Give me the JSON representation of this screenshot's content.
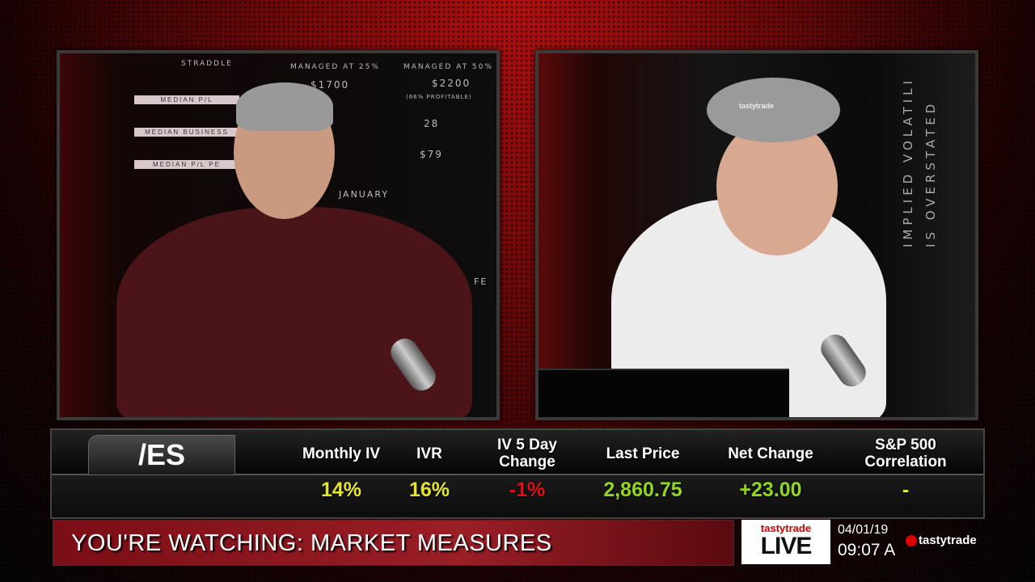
{
  "left_set": {
    "table_header": [
      "STRADDLE",
      "MANAGED AT 25%",
      "MANAGED AT 50%"
    ],
    "row_labels": [
      "MEDIAN P/L",
      "MEDIAN BUSINESS",
      "MEDIAN P/L PE"
    ],
    "values": [
      "$1700",
      "$2200",
      "(66% PROFITABLE)",
      "28",
      "$79"
    ],
    "month": "JANUARY",
    "month2": "FE"
  },
  "right_set": {
    "wall_text_1": "IMPLIED VOLATILI",
    "wall_text_2": "IS OVERSTATED",
    "hat_logo": "tastytrade"
  },
  "ticker": {
    "symbol": "/ES",
    "columns": [
      {
        "header": "Monthly IV",
        "value": "14%",
        "color": "#e6e628"
      },
      {
        "header": "IVR",
        "value": "16%",
        "color": "#e6e628"
      },
      {
        "header": "IV 5 Day Change",
        "value": "-1%",
        "color": "#e01010"
      },
      {
        "header": "Last Price",
        "value": "2,860.75",
        "color": "#8fd81e"
      },
      {
        "header": "Net Change",
        "value": "+23.00",
        "color": "#8fd81e"
      },
      {
        "header": "S&P 500 Correlation",
        "value": "-",
        "color": "#e6e628"
      }
    ]
  },
  "lower_third": {
    "text": "YOU'RE WATCHING: MARKET MEASURES",
    "logo_top": "tastytrade",
    "logo_bottom": "LIVE",
    "date": "04/01/19",
    "time": "09:07 A",
    "brand": "tastytrade"
  }
}
